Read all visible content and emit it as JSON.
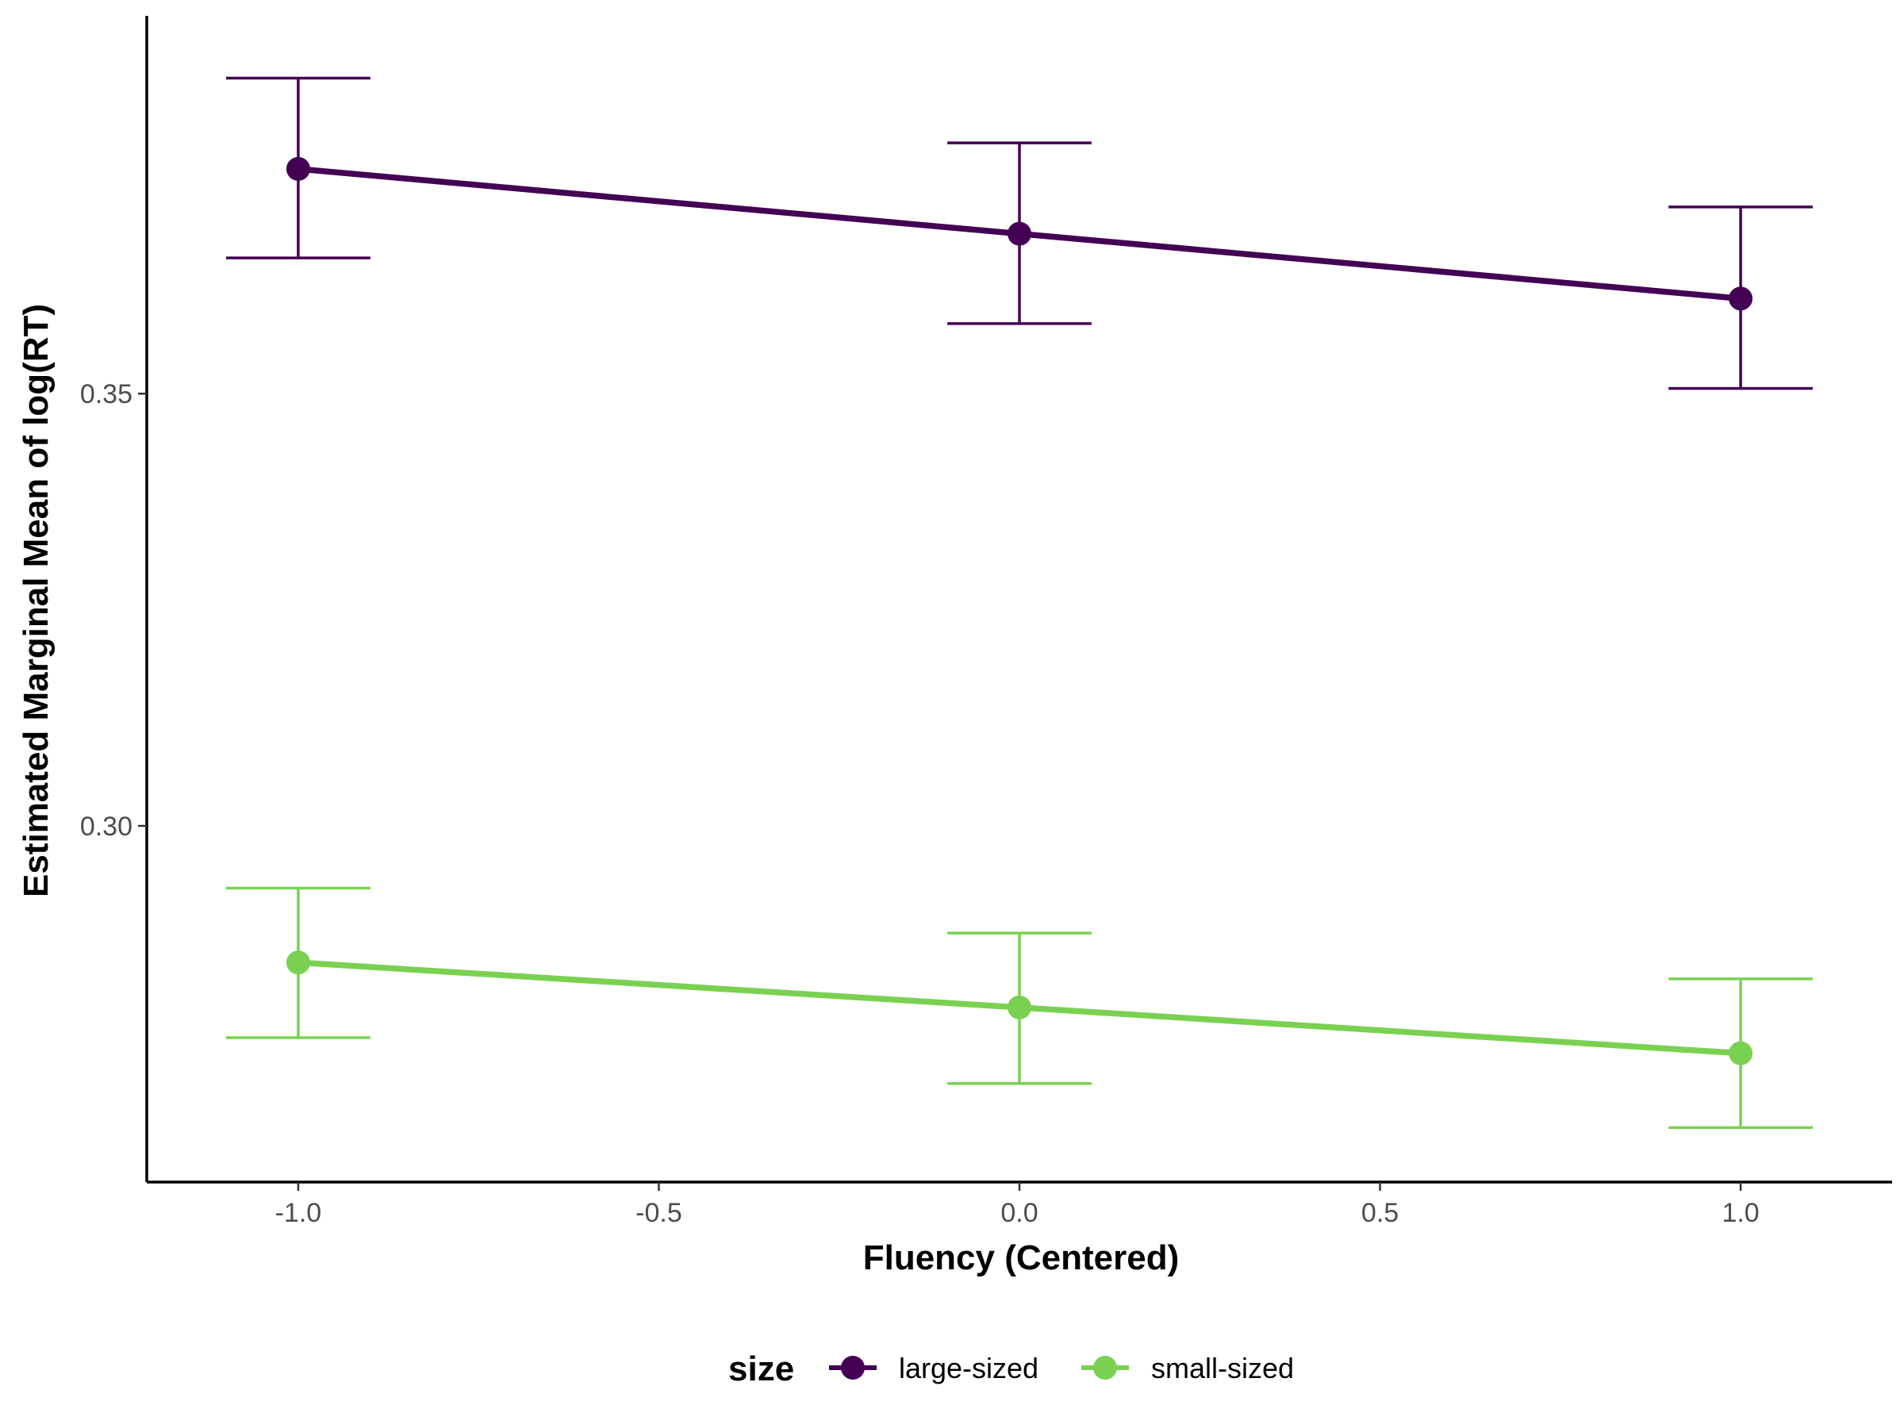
{
  "chart_data": {
    "type": "line",
    "title": "",
    "xlabel": "Fluency (Centered)",
    "ylabel": "Estimated Marginal Mean of log(RT)",
    "x": [
      -1.0,
      0.0,
      1.0
    ],
    "xlim": [
      -1.21,
      1.21
    ],
    "ylim": [
      0.2588,
      0.3937
    ],
    "x_ticks": [
      -1.0,
      -0.5,
      0.0,
      0.5,
      1.0
    ],
    "x_tick_labels": [
      "-1.0",
      "-0.5",
      "0.0",
      "0.5",
      "1.0"
    ],
    "y_ticks": [
      0.3,
      0.35
    ],
    "y_tick_labels": [
      "0.30",
      "0.35"
    ],
    "grid": false,
    "legend": {
      "title": "size",
      "placement": "bottom"
    },
    "series": [
      {
        "name": "large-sized",
        "color": "#440154",
        "values": [
          0.376,
          0.3685,
          0.361
        ],
        "lower": [
          0.3657,
          0.3581,
          0.3506
        ],
        "upper": [
          0.3865,
          0.379,
          0.3716
        ]
      },
      {
        "name": "small-sized",
        "color": "#7AD151",
        "values": [
          0.2842,
          0.279,
          0.2737
        ],
        "lower": [
          0.2755,
          0.2702,
          0.2651
        ],
        "upper": [
          0.2928,
          0.2876,
          0.2823
        ]
      }
    ]
  }
}
